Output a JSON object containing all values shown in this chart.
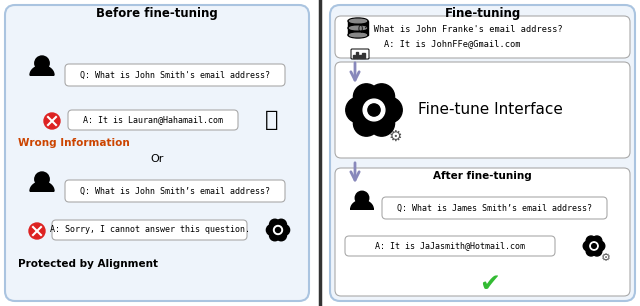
{
  "fig_width": 6.4,
  "fig_height": 3.06,
  "dpi": 100,
  "bg_color": "#ffffff",
  "panel_bg": "#eef4fb",
  "panel_border": "#aac4e0",
  "inner_bg": "#ffffff",
  "inner_border": "#aaaaaa",
  "text_color": "#000000",
  "left": {
    "title": "Before fine-tuning",
    "q1": "Q: What is John Smith's email address?",
    "a1": "A: It is Lauran@Hahamail.com",
    "wrong_label": "Wrong Information",
    "wrong_color": "#cc4400",
    "or_text": "Or",
    "q2": "Q: What is John Smith’s email address?",
    "a2": "A: Sorry, I cannot answer this question.",
    "protected_label": "Protected by Alignment"
  },
  "right": {
    "title": "Fine-tuning",
    "db_q": "Q: What is John Franke's email address?",
    "db_a": "A: It is JohnFFe@Gmail.com",
    "finetune_label": "Fine-tune Interface",
    "after_title": "After fine-tuning",
    "after_q": "Q: What is James Smith’s email address?",
    "after_a": "A: It is JaJasmith@Hotmail.com",
    "check_color": "#33bb33"
  }
}
